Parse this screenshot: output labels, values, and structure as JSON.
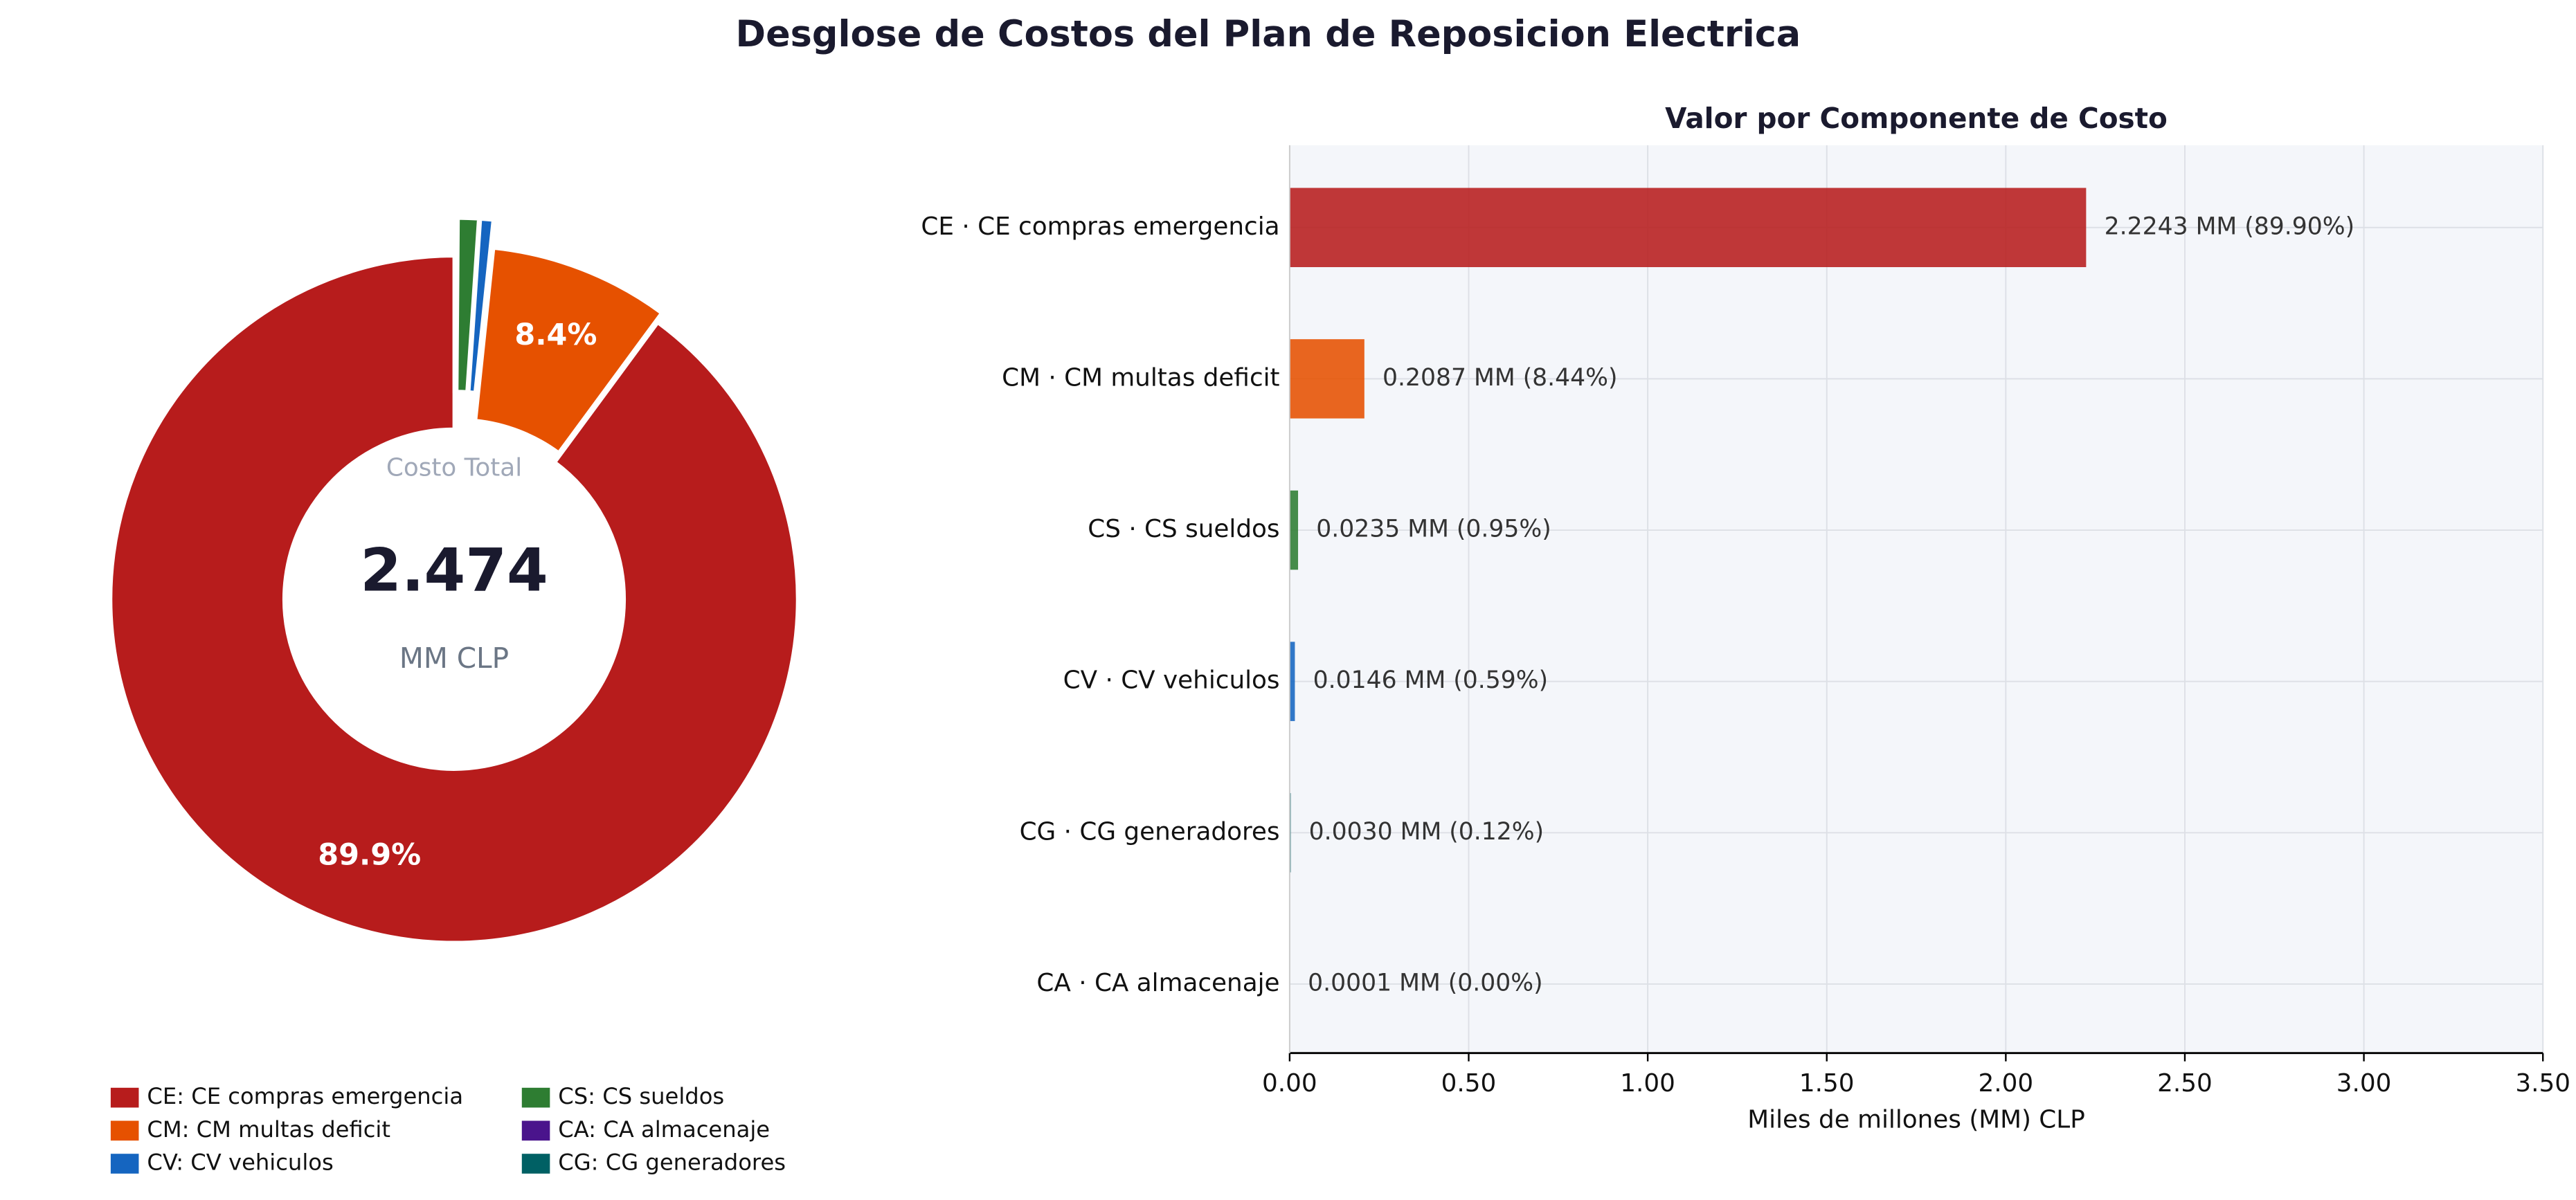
{
  "title": "Desglose de Costos del Plan de Reposicion Electrica",
  "chart_data": [
    {
      "type": "pie",
      "categories": [
        "CE: CE compras emergencia",
        "CM: CM multas deficit",
        "CV: CV vehiculos",
        "CS: CS sueldos",
        "CA: CA almacenaje",
        "CG: CG generadores"
      ],
      "values": [
        89.9,
        8.44,
        0.59,
        0.95,
        0.0,
        0.12
      ],
      "value_labels": [
        "89.9%",
        "8.4%",
        null,
        null,
        null,
        null
      ],
      "colors": [
        "#b71c1c",
        "#e65100",
        "#1565c0",
        "#2e7d32",
        "#4a148c",
        "#006064"
      ],
      "center_title": "Costo Total",
      "total": 2.474,
      "total_unit": "MM CLP",
      "donut": true
    },
    {
      "type": "hbar",
      "title": "Valor por Componente de Costo",
      "categories": [
        "CE  ·  CE compras emergencia",
        "CM  ·  CM multas deficit",
        "CS  ·  CS sueldos",
        "CV  ·  CV vehiculos",
        "CG  ·  CG generadores",
        "CA  ·  CA almacenaje"
      ],
      "values": [
        2.2243,
        0.2087,
        0.0235,
        0.0146,
        0.003,
        0.0001
      ],
      "value_labels": [
        "2.2243 MM   (89.90%)",
        "0.2087 MM   (8.44%)",
        "0.0235 MM   (0.95%)",
        "0.0146 MM   (0.59%)",
        "0.0030 MM   (0.12%)",
        "0.0001 MM   (0.00%)"
      ],
      "colors": [
        "#b71c1c",
        "#e65100",
        "#2e7d32",
        "#1565c0",
        "#006064",
        "#4a148c"
      ],
      "xlabel": "Miles de millones (MM) CLP",
      "xlim": [
        0,
        3.5
      ],
      "xticks": [
        {
          "value": 0,
          "label": "0.00"
        },
        {
          "value": 0.5,
          "label": "0.50"
        },
        {
          "value": 1,
          "label": "1.00"
        },
        {
          "value": 1.5,
          "label": "1.50"
        },
        {
          "value": 2,
          "label": "2.00"
        },
        {
          "value": 2.5,
          "label": "2.50"
        },
        {
          "value": 3,
          "label": "3.00"
        },
        {
          "value": 3.5,
          "label": "3.50"
        }
      ],
      "grid": true
    }
  ]
}
